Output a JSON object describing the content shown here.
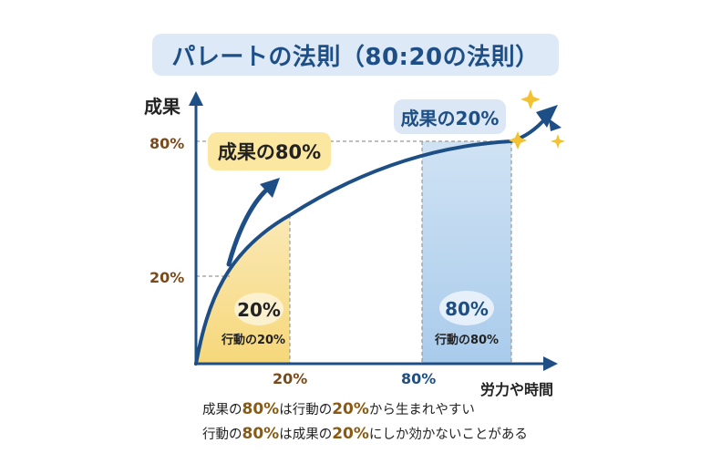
{
  "title": "パレートの法則（80:20の法則）",
  "axes": {
    "y_label": "成果",
    "x_label": "労力や時間",
    "y_ticks": [
      "80%",
      "20%"
    ],
    "x_ticks": [
      "20%",
      "80%"
    ]
  },
  "callouts": {
    "result_80": "成果の80%",
    "result_20": "成果の20%"
  },
  "regions": {
    "left": {
      "percent": "20%",
      "caption": "行動の20%",
      "color": "#f6d77a"
    },
    "right": {
      "percent": "80%",
      "caption": "行動の80%",
      "color": "#a9cbeb"
    }
  },
  "notes": [
    {
      "p1": "成果の",
      "n1": "80%",
      "p2": "は行動の",
      "n2": "20%",
      "p3": "から生まれやすい"
    },
    {
      "p1": "行動の",
      "n1": "80%",
      "p2": "は成果の",
      "n2": "20%",
      "p3": "にしか効かないことがある"
    }
  ],
  "colors": {
    "navy": "#1d4f86",
    "brown": "#7a4a1a",
    "blue_text": "#1d4f86",
    "sparkle": "#f2c230"
  }
}
